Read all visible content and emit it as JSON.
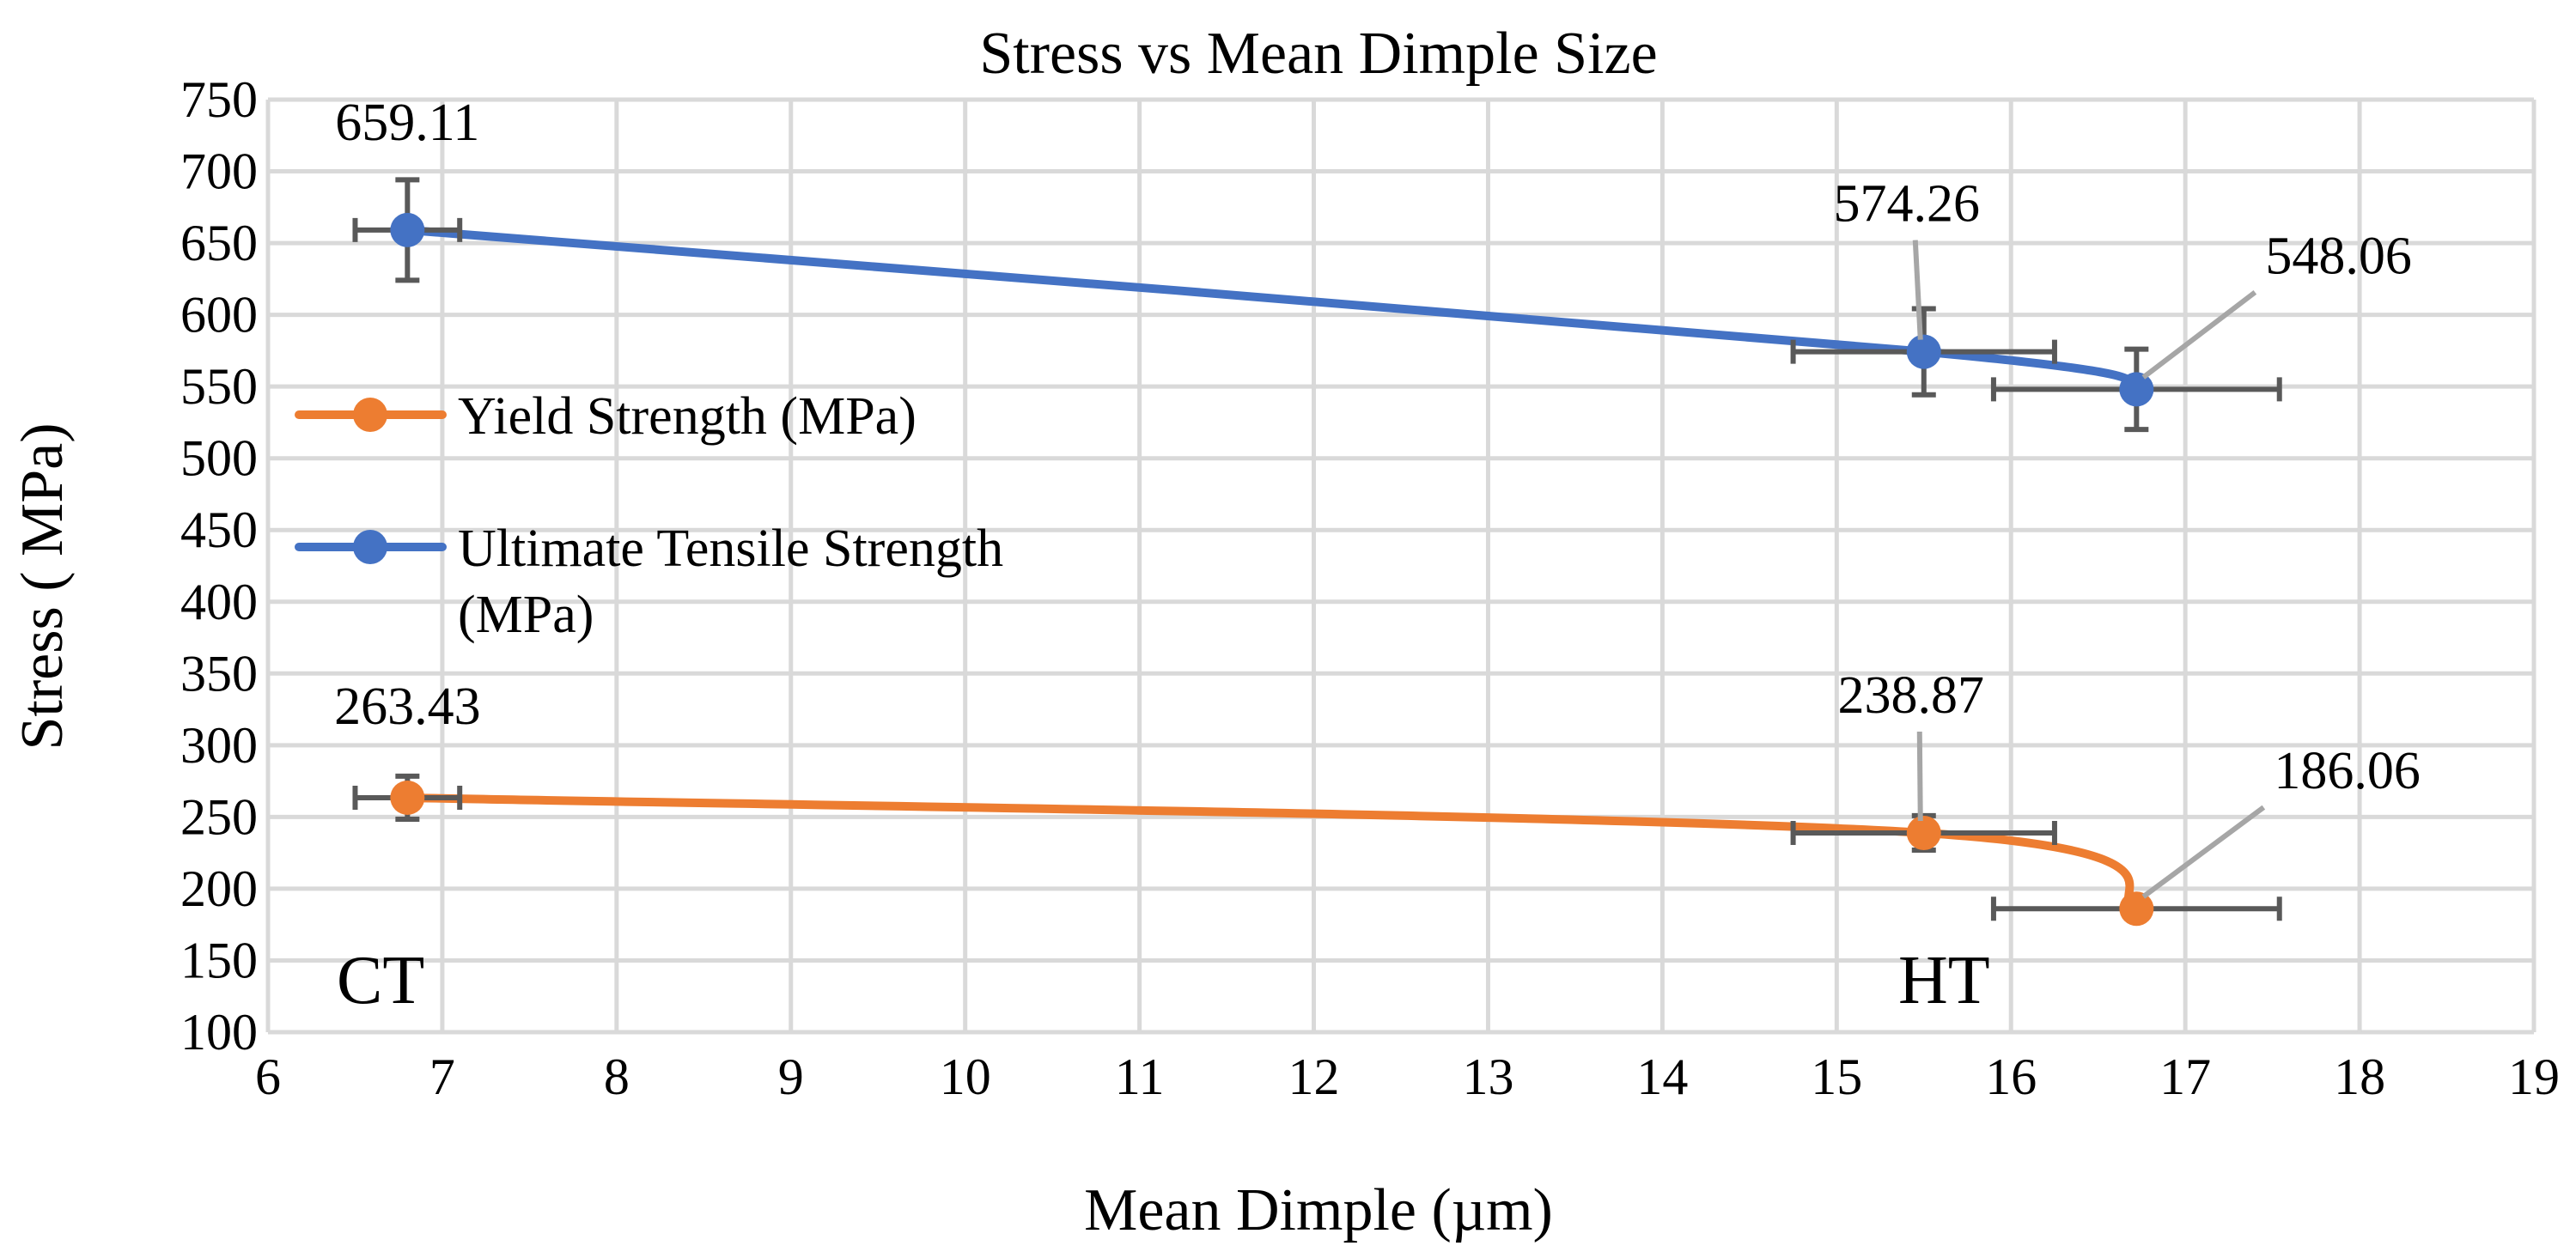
{
  "chart_data": {
    "type": "scatter",
    "title": "Stress vs Mean Dimple Size",
    "xlabel": "Mean Dimple  (µm)",
    "ylabel": "Stress ( MPa)",
    "xlim": [
      6,
      19
    ],
    "ylim": [
      100,
      750
    ],
    "xticks": [
      "6",
      "7",
      "8",
      "9",
      "10",
      "11",
      "12",
      "13",
      "14",
      "15",
      "16",
      "17",
      "18",
      "19"
    ],
    "yticks": [
      "100",
      "150",
      "200",
      "250",
      "300",
      "350",
      "400",
      "450",
      "500",
      "550",
      "600",
      "650",
      "700",
      "750"
    ],
    "grid": true,
    "legend_position": "left",
    "series": [
      {
        "name": "Yield Strength (MPa)",
        "color": "#ed7d31",
        "x": [
          6.8,
          15.5,
          16.72
        ],
        "y": [
          263.43,
          238.87,
          186.06
        ],
        "x_err": [
          0.3,
          0.75,
          0.82
        ],
        "y_err": [
          15,
          12,
          4
        ],
        "labels": [
          "263.43",
          "238.87",
          "186.06"
        ]
      },
      {
        "name": "Ultimate Tensile Strength (MPa)",
        "legend_lines": [
          "Ultimate Tensile Strength",
          "(MPa)"
        ],
        "color": "#4472c4",
        "x": [
          6.8,
          15.5,
          16.72
        ],
        "y": [
          659.11,
          574.26,
          548.06
        ],
        "x_err": [
          0.3,
          0.75,
          0.82
        ],
        "y_err": [
          35,
          30,
          28
        ],
        "labels": [
          "659.11",
          "574.26",
          "548.06"
        ]
      }
    ],
    "annotations": [
      "CT",
      "HT"
    ]
  }
}
